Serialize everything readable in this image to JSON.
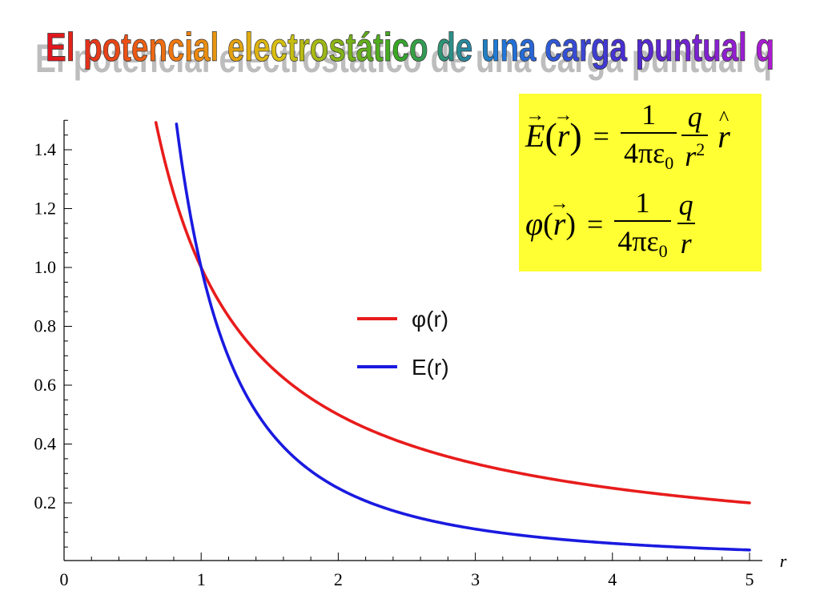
{
  "title": "El potencial electrostático de una carga puntual q",
  "formulas": {
    "field": {
      "lhs_symbol": "E",
      "arg": "r",
      "equals": "=",
      "coef_num": "1",
      "coef_den": "4πε",
      "coef_den_sub": "0",
      "q": "q",
      "r": "r",
      "r_exp": "2",
      "unit_vector": "r"
    },
    "potential": {
      "lhs_symbol": "φ",
      "arg": "r",
      "equals": "=",
      "coef_num": "1",
      "coef_den": "4πε",
      "coef_den_sub": "0",
      "q": "q",
      "r": "r"
    }
  },
  "colors": {
    "formula_bg": "#ffff33",
    "phi": "#e81c1c",
    "E": "#1a1ae0"
  },
  "chart_data": {
    "type": "line",
    "title": "",
    "xlabel": "r",
    "ylabel": "",
    "xlim": [
      0,
      5
    ],
    "ylim": [
      0.0,
      1.5
    ],
    "x_ticks": [
      "0",
      "1",
      "2",
      "3",
      "4",
      "5"
    ],
    "y_ticks": [
      "0.2",
      "0.4",
      "0.6",
      "0.8",
      "1.0",
      "1.2",
      "1.4"
    ],
    "legend_position": "center-right",
    "series": [
      {
        "name": "φ(r)",
        "function": "1/r",
        "color": "#e81c1c",
        "x": [
          0.67,
          0.75,
          1,
          1.5,
          2,
          2.5,
          3,
          3.5,
          4,
          4.5,
          5
        ],
        "y": [
          1.5,
          1.333,
          1.0,
          0.667,
          0.5,
          0.4,
          0.333,
          0.286,
          0.25,
          0.222,
          0.2
        ]
      },
      {
        "name": "E(r)",
        "function": "1/r^2",
        "color": "#1a1ae0",
        "x": [
          0.82,
          0.9,
          1,
          1.5,
          2,
          2.5,
          3,
          3.5,
          4,
          4.5,
          5
        ],
        "y": [
          1.5,
          1.235,
          1.0,
          0.444,
          0.25,
          0.16,
          0.111,
          0.082,
          0.0625,
          0.049,
          0.04
        ]
      }
    ]
  }
}
